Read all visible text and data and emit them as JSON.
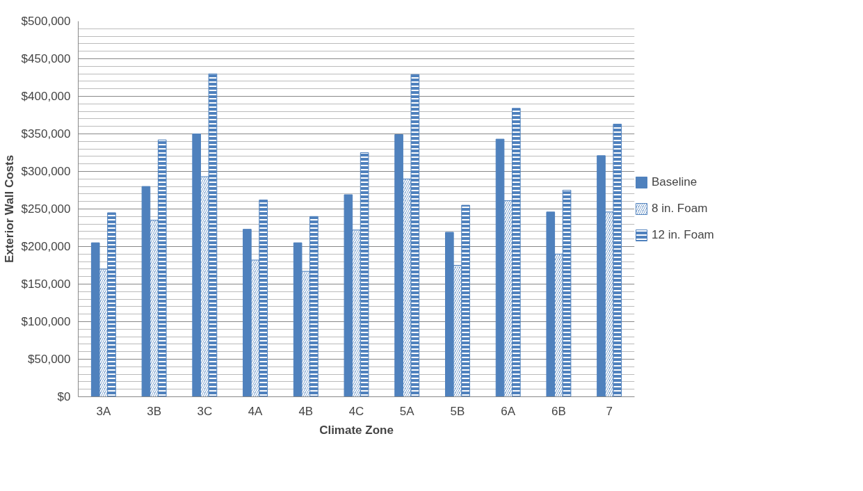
{
  "chart_data": {
    "type": "bar",
    "xlabel": "Climate Zone",
    "ylabel": "Exterior Wall Costs",
    "categories": [
      "3A",
      "3B",
      "3C",
      "4A",
      "4B",
      "4C",
      "5A",
      "5B",
      "6A",
      "6B",
      "7"
    ],
    "series": [
      {
        "name": "Baseline",
        "color": "#4f81bd",
        "values": [
          205000,
          280000,
          350000,
          223000,
          205000,
          269000,
          349000,
          219000,
          343000,
          246000,
          321000
        ]
      },
      {
        "name": "8 in. Foam",
        "color": "#4f81bd",
        "values": [
          170000,
          235000,
          293000,
          182000,
          167000,
          222000,
          290000,
          175000,
          261000,
          190000,
          246000
        ]
      },
      {
        "name": "12 in. Foam",
        "color": "#4f81bd",
        "values": [
          245000,
          342000,
          430000,
          262000,
          240000,
          325000,
          429000,
          255000,
          384000,
          275000,
          363000
        ]
      }
    ],
    "ylim": [
      0,
      500000
    ],
    "yticks": [
      {
        "value": 0,
        "label": "$0"
      },
      {
        "value": 50000,
        "label": "$50,000"
      },
      {
        "value": 100000,
        "label": "$100,000"
      },
      {
        "value": 150000,
        "label": "$150,000"
      },
      {
        "value": 200000,
        "label": "$200,000"
      },
      {
        "value": 250000,
        "label": "$250,000"
      },
      {
        "value": 300000,
        "label": "$300,000"
      },
      {
        "value": 350000,
        "label": "$350,000"
      },
      {
        "value": 400000,
        "label": "$400,000"
      },
      {
        "value": 450000,
        "label": "$450,000"
      },
      {
        "value": 500000,
        "label": "$500,000"
      }
    ],
    "grid": "y",
    "legend": "right"
  }
}
